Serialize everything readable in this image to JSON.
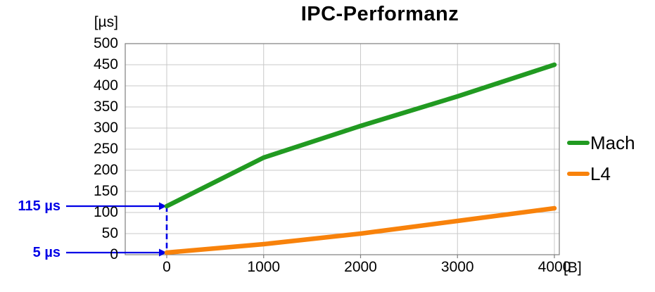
{
  "title": "IPC-Performanz",
  "y_axis_unit": "[µs]",
  "x_axis_unit": "[B]",
  "annotations": [
    {
      "label": "115 µs",
      "value": 115
    },
    {
      "label": "5 µs",
      "value": 5
    }
  ],
  "legend": [
    {
      "label": "Mach",
      "color": "#219a21"
    },
    {
      "label": "L4",
      "color": "#f8820b"
    }
  ],
  "colors": {
    "mach": "#219a21",
    "l4": "#f8820b",
    "annotation": "#0000e6",
    "grid": "#c9c9c9",
    "axis": "#7f7f7f"
  },
  "chart_data": {
    "type": "line",
    "title": "IPC-Performanz",
    "xlabel": "[B]",
    "ylabel": "[µs]",
    "x": [
      0,
      1000,
      2000,
      3000,
      4000
    ],
    "series": [
      {
        "name": "Mach",
        "color": "#219a21",
        "values": [
          115,
          230,
          305,
          375,
          450
        ]
      },
      {
        "name": "L4",
        "color": "#f8820b",
        "values": [
          5,
          25,
          50,
          80,
          110
        ]
      }
    ],
    "xlim": [
      0,
      4000
    ],
    "ylim": [
      0,
      500
    ],
    "x_ticks": [
      0,
      1000,
      2000,
      3000,
      4000
    ],
    "y_ticks": [
      0,
      50,
      100,
      150,
      200,
      250,
      300,
      350,
      400,
      450,
      500
    ],
    "grid": true,
    "legend_position": "right"
  }
}
